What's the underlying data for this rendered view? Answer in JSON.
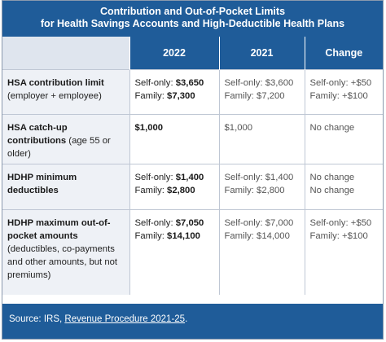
{
  "title": {
    "line1": "Contribution and Out-of-Pocket Limits",
    "line2": "for Health Savings Accounts and High-Deductible Health Plans"
  },
  "columns": [
    "",
    "2022",
    "2021",
    "Change"
  ],
  "rows": [
    {
      "label_bold": "HSA contribution limit",
      "label_rest": " (employer + employee)",
      "y2022": [
        {
          "pre": "Self-only: ",
          "bold": "$3,650"
        },
        {
          "pre": "Family: ",
          "bold": "$7,300"
        }
      ],
      "y2021": [
        "Self-only: $3,600",
        "Family: $7,200"
      ],
      "change": [
        "Self-only: +$50",
        "Family: +$100"
      ]
    },
    {
      "label_bold": "HSA catch-up contributions",
      "label_rest": " (age 55 or older)",
      "y2022": [
        {
          "pre": "",
          "bold": "$1,000"
        }
      ],
      "y2021": [
        "$1,000"
      ],
      "change": [
        "No change"
      ]
    },
    {
      "label_bold": "HDHP minimum deductibles",
      "label_rest": "",
      "y2022": [
        {
          "pre": "Self-only: ",
          "bold": "$1,400"
        },
        {
          "pre": "Family: ",
          "bold": "$2,800"
        }
      ],
      "y2021": [
        "Self-only: $1,400",
        "Family: $2,800"
      ],
      "change": [
        "No change",
        "No change"
      ]
    },
    {
      "label_bold": "HDHP maximum out-of-pocket amounts",
      "label_rest": " (deductibles, co-payments and other amounts, but not premiums)",
      "y2022": [
        {
          "pre": "Self-only: ",
          "bold": "$7,050"
        },
        {
          "pre": "Family: ",
          "bold": "$14,100"
        }
      ],
      "y2021": [
        "Self-only: $7,000",
        "Family: $14,000"
      ],
      "change": [
        "Self-only: +$50",
        "Family: +$100"
      ]
    }
  ],
  "footer": {
    "prefix": "Source: IRS, ",
    "link": "Revenue Procedure 2021-25",
    "suffix": "."
  },
  "colors": {
    "header_blue": "#1f5c99",
    "label_bg": "#eef1f6"
  }
}
